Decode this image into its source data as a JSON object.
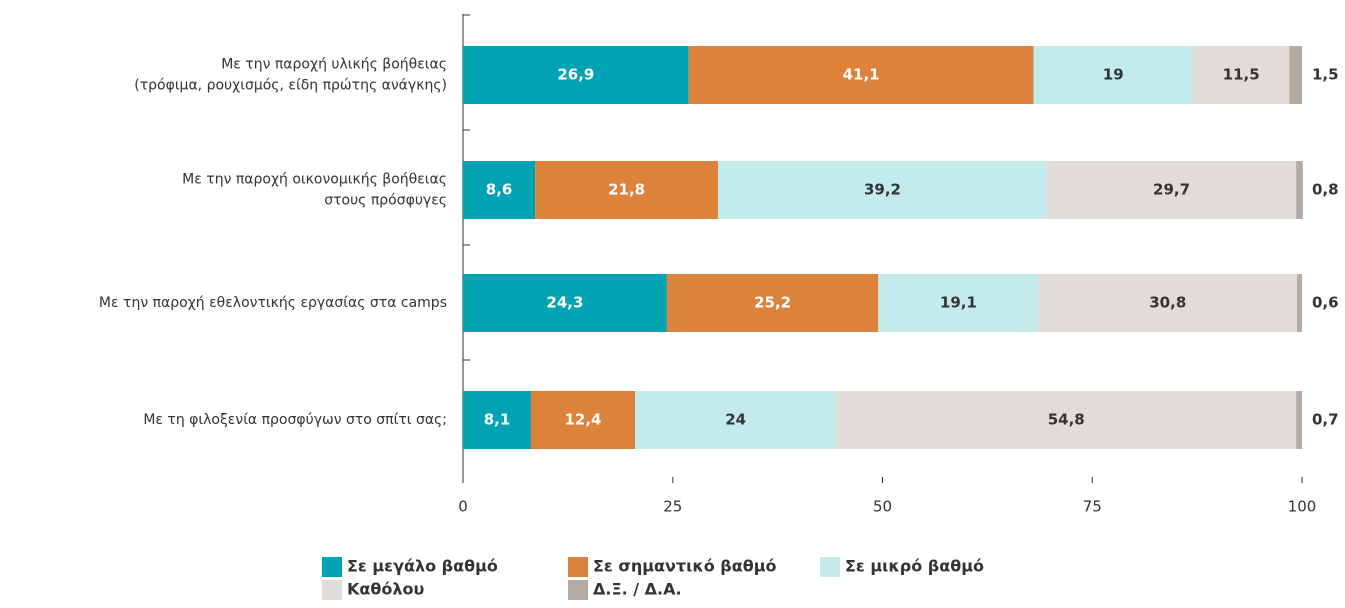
{
  "chart_data": {
    "type": "stacked-bar-horizontal",
    "categories": [
      "Με την παροχή υλικής βοήθειας\n(τρόφιμα, ρουχισμός, είδη πρώτης ανάγκης)",
      "Με την παροχή οικονομικής βοήθειας\nστους πρόσφυγες",
      "Με την παροχή εθελοντικής εργασίας στα camps",
      "Με τη φιλοξενία προσφύγων στο σπίτι σας;"
    ],
    "series": [
      {
        "name": "Σε μεγάλο βαθμό",
        "color": "#00a3b4",
        "values": [
          26.9,
          8.6,
          24.3,
          8.1
        ],
        "value_labels": [
          "26,9",
          "8,6",
          "24,3",
          "8,1"
        ]
      },
      {
        "name": "Σε σημαντικό βαθμό",
        "color": "#dc823a",
        "values": [
          41.1,
          21.8,
          25.2,
          12.4
        ],
        "value_labels": [
          "41,1",
          "21,8",
          "25,2",
          "12,4"
        ]
      },
      {
        "name": "Σε μικρό βαθμό",
        "color": "#c4ebec",
        "values": [
          19,
          39.2,
          19.1,
          24
        ],
        "value_labels": [
          "19",
          "39,2",
          "19,1",
          "24"
        ]
      },
      {
        "name": "Καθόλου",
        "color": "#e2dcd8",
        "values": [
          11.5,
          29.7,
          30.8,
          54.8
        ],
        "value_labels": [
          "11,5",
          "29,7",
          "30,8",
          "54,8"
        ]
      },
      {
        "name": "Δ.Ξ. / Δ.Α.",
        "color": "#b3aaa0",
        "values": [
          1.5,
          0.8,
          0.6,
          0.7
        ],
        "value_labels": [
          "1,5",
          "0,8",
          "0,6",
          "0,7"
        ]
      }
    ],
    "xlim": [
      0,
      100
    ],
    "xticks": [
      0,
      25,
      50,
      75,
      100
    ]
  }
}
